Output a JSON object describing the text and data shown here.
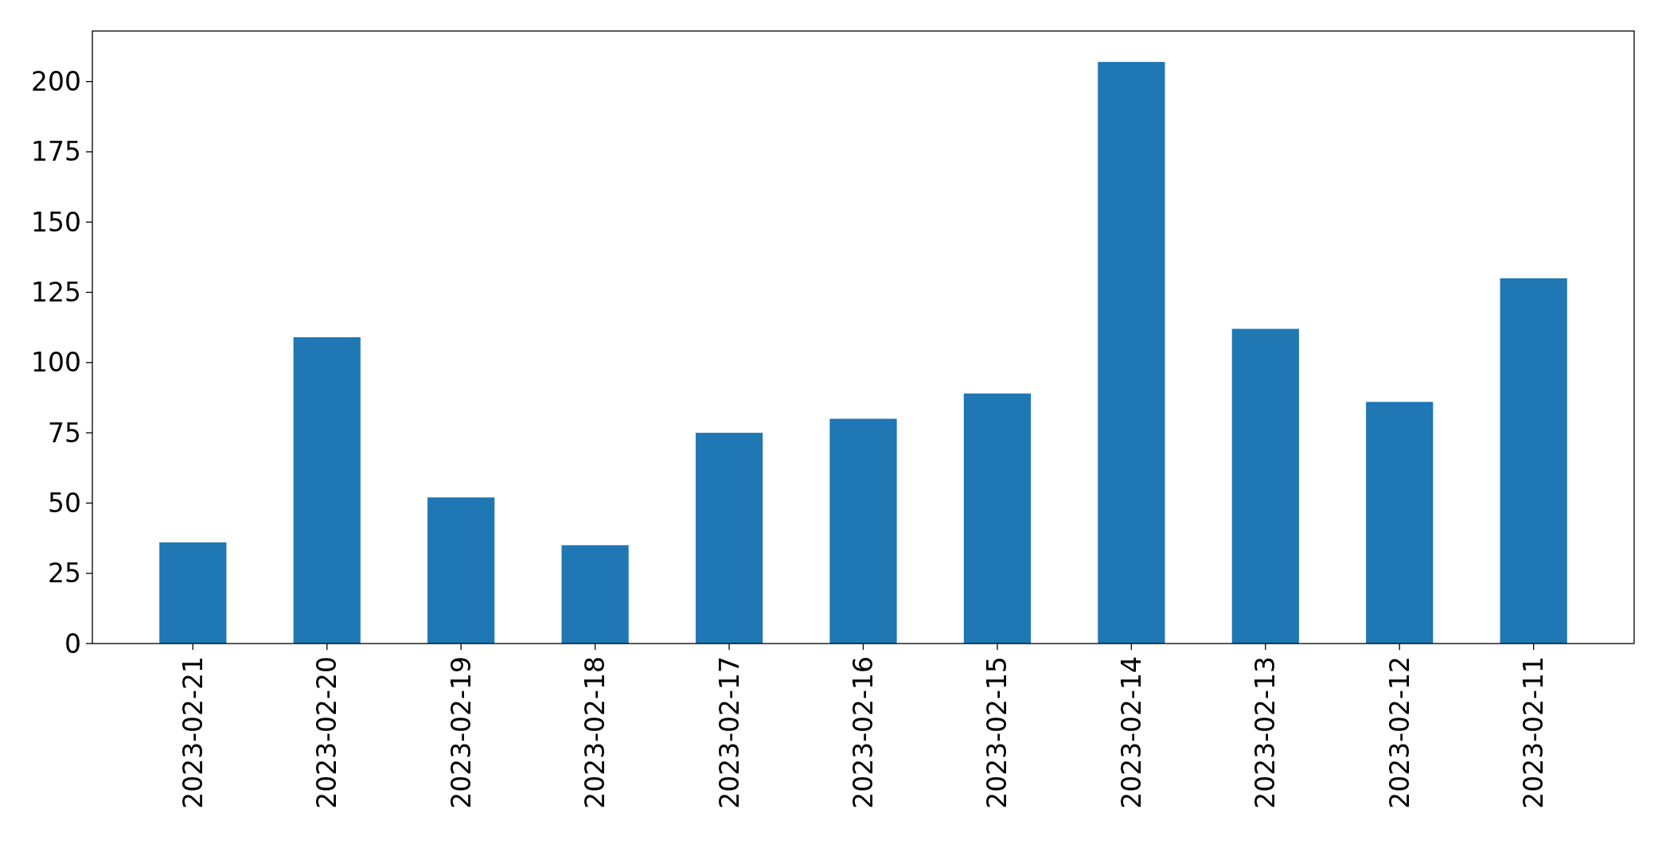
{
  "chart_data": {
    "type": "bar",
    "categories": [
      "2023-02-21",
      "2023-02-20",
      "2023-02-19",
      "2023-02-18",
      "2023-02-17",
      "2023-02-16",
      "2023-02-15",
      "2023-02-14",
      "2023-02-13",
      "2023-02-12",
      "2023-02-11"
    ],
    "values": [
      36,
      109,
      52,
      35,
      75,
      80,
      89,
      207,
      112,
      86,
      130
    ],
    "color": "#1f77b4",
    "ylim": [
      0,
      218
    ],
    "yticks": [
      0,
      25,
      50,
      75,
      100,
      125,
      150,
      175,
      200
    ],
    "grid": false
  }
}
